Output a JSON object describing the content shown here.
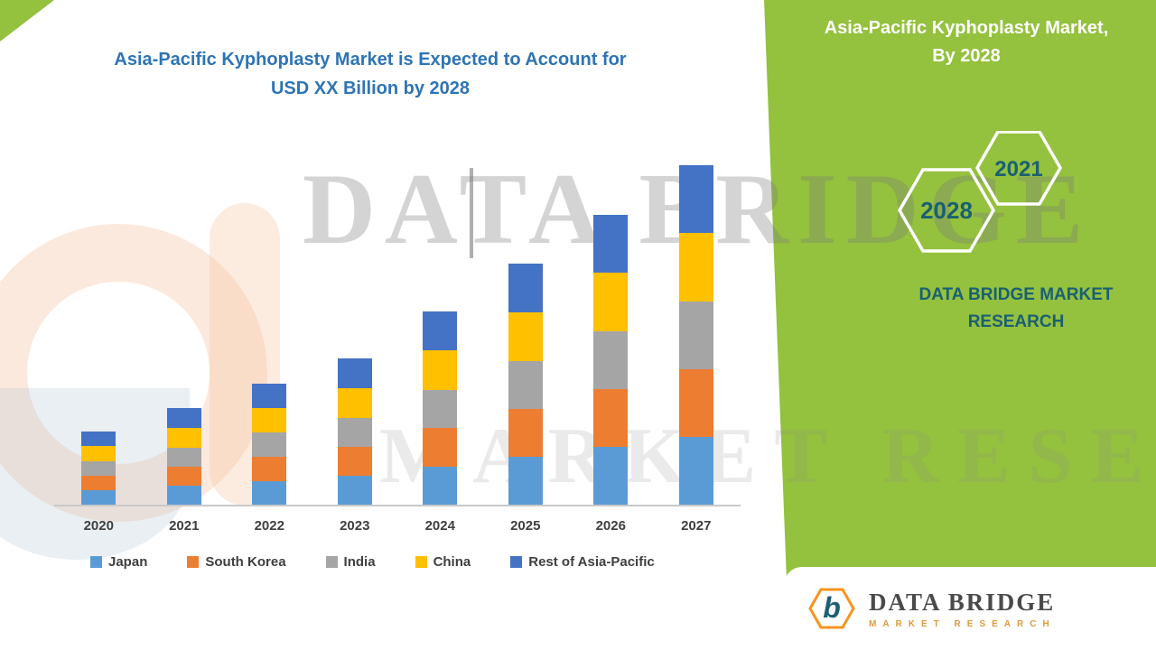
{
  "palette": {
    "green": "#94C13E",
    "teal": "#1A6072",
    "title_blue": "#2E74B5",
    "logo_orange": "#F7941D"
  },
  "title": {
    "line1": "Asia-Pacific Kyphoplasty Market is Expected to Account for",
    "line2": "USD XX Billion by 2028"
  },
  "sidebar": {
    "heading_line1": "Asia-Pacific Kyphoplasty Market,",
    "heading_line2": "By 2028",
    "hexagon_years": [
      "2028",
      "2021"
    ],
    "brand_line1": "DATA BRIDGE MARKET",
    "brand_line2": "RESEARCH"
  },
  "watermark": {
    "text1": "DATA BRIDGE",
    "text2": "MARKET RESEARCH"
  },
  "logo_card": {
    "monogram": "b",
    "brand": "DATA BRIDGE",
    "subtitle": "MARKET RESEARCH"
  },
  "chart_data": {
    "type": "bar",
    "stacked": true,
    "title": "Asia-Pacific Kyphoplasty Market is Expected to Account for USD XX Billion by 2028",
    "xlabel": "",
    "ylabel": "",
    "unit": "USD Billion (values shown as XX; heights estimated from pixels)",
    "categories": [
      "2020",
      "2021",
      "2022",
      "2023",
      "2024",
      "2025",
      "2026",
      "2027"
    ],
    "ylim": [
      0,
      4
    ],
    "grid": false,
    "legend_position": "bottom",
    "series": [
      {
        "name": "Japan",
        "color": "#5B9BD5",
        "values": [
          0.17,
          0.22,
          0.27,
          0.33,
          0.43,
          0.54,
          0.65,
          0.76
        ]
      },
      {
        "name": "South Korea",
        "color": "#ED7D31",
        "values": [
          0.16,
          0.21,
          0.27,
          0.32,
          0.43,
          0.53,
          0.64,
          0.75
        ]
      },
      {
        "name": "India",
        "color": "#A5A5A5",
        "values": [
          0.16,
          0.21,
          0.27,
          0.32,
          0.42,
          0.53,
          0.64,
          0.75
        ]
      },
      {
        "name": "China",
        "color": "#FFC000",
        "values": [
          0.17,
          0.22,
          0.27,
          0.33,
          0.44,
          0.54,
          0.65,
          0.76
        ]
      },
      {
        "name": "Rest of Asia-Pacific",
        "color": "#4472C4",
        "values": [
          0.16,
          0.22,
          0.27,
          0.33,
          0.43,
          0.54,
          0.64,
          0.75
        ]
      }
    ],
    "totals": [
      0.82,
      1.08,
      1.35,
      1.63,
      2.15,
      2.68,
      3.22,
      3.77
    ]
  }
}
